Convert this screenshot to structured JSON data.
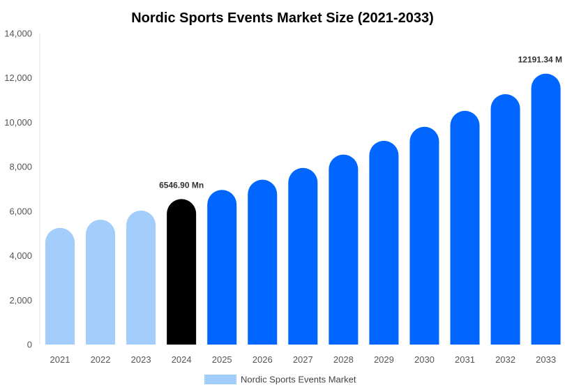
{
  "chart_data": {
    "type": "bar",
    "title": "Nordic Sports Events Market Size (2021-2033)",
    "categories": [
      "2021",
      "2022",
      "2023",
      "2024",
      "2025",
      "2026",
      "2027",
      "2028",
      "2029",
      "2030",
      "2031",
      "2032",
      "2033"
    ],
    "series": [
      {
        "name": "Nordic Sports Events Market",
        "values": [
          5250,
          5620,
          6030,
          6546.9,
          6960,
          7420,
          7950,
          8550,
          9170,
          9800,
          10520,
          11270,
          12191.34
        ]
      }
    ],
    "ylim": [
      0,
      14000
    ],
    "yticks": [
      0,
      2000,
      4000,
      6000,
      8000,
      10000,
      12000,
      14000
    ],
    "ytick_labels": [
      "0",
      "2,000",
      "4,000",
      "6,000",
      "8,000",
      "10,000",
      "12,000",
      "14,000"
    ],
    "data_labels": [
      {
        "category": "2024",
        "text": "6546.90 Mn"
      },
      {
        "category": "2033",
        "text": "12191.34 M"
      }
    ],
    "colors": {
      "historical": "#a3cdfb",
      "current": "#000000",
      "forecast": "#0066ff"
    },
    "grid": false,
    "legend_position": "bottom"
  }
}
